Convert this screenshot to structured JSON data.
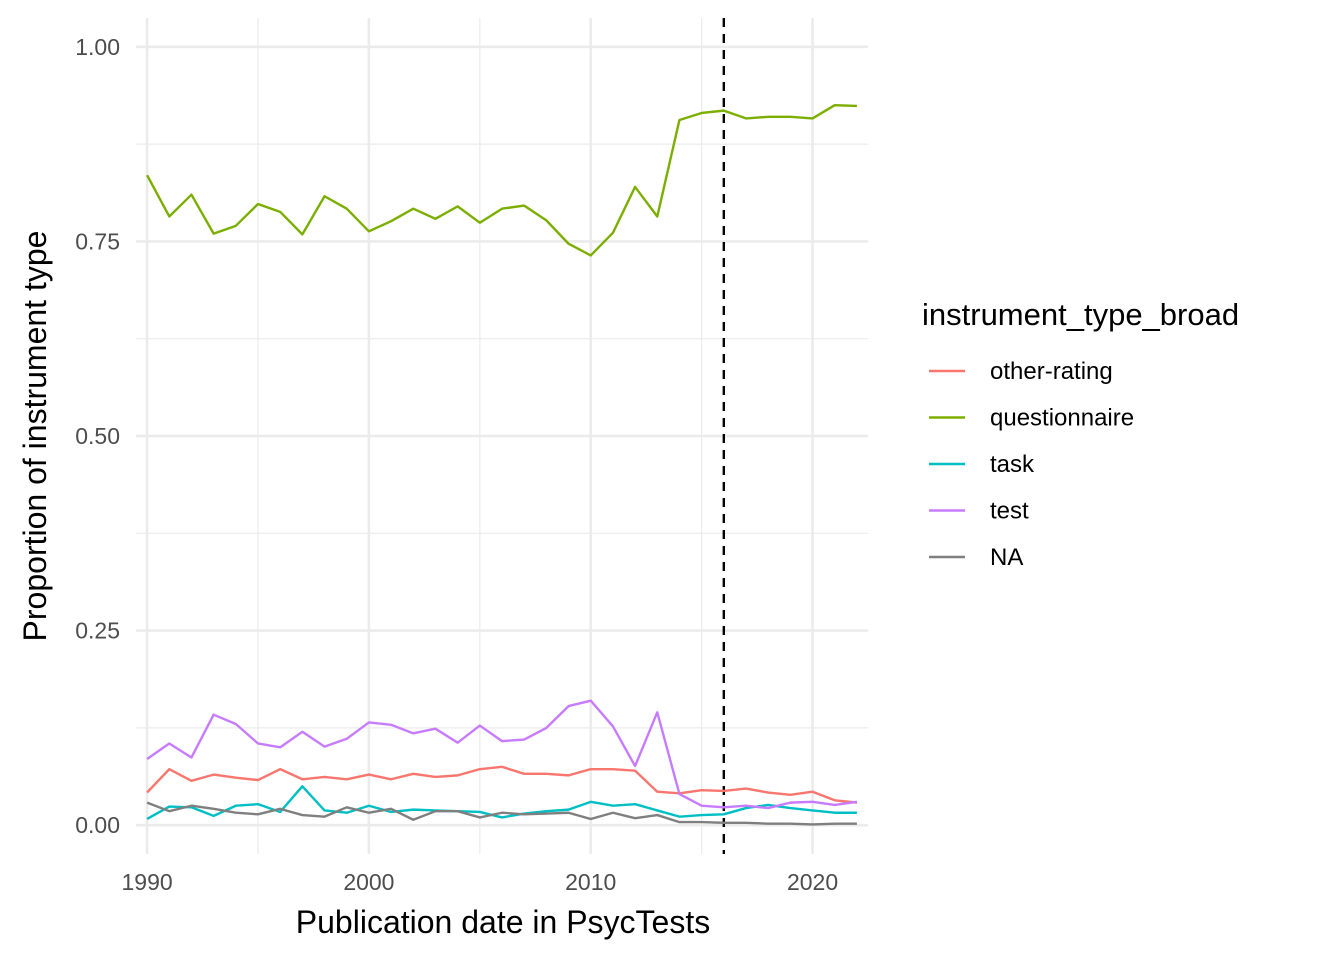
{
  "chart_data": {
    "type": "line",
    "xlabel": "Publication date in PsycTests",
    "ylabel": "Proportion of instrument type",
    "xlim": [
      1989.5,
      2022.5
    ],
    "ylim": [
      -0.037,
      1.037
    ],
    "x_ticks": [
      1990,
      2000,
      2010,
      2020
    ],
    "x_tick_labels": [
      "1990",
      "2000",
      "2010",
      "2020"
    ],
    "y_ticks": [
      0,
      0.25,
      0.5,
      0.75,
      1.0
    ],
    "y_tick_labels": [
      "0.00",
      "0.25",
      "0.50",
      "0.75",
      "1.00"
    ],
    "vline": {
      "x": 2016,
      "style": "dashed"
    },
    "grid": true,
    "legend": {
      "title": "instrument_type_broad",
      "position": "right"
    },
    "x": [
      1990,
      1991,
      1992,
      1993,
      1994,
      1995,
      1996,
      1997,
      1998,
      1999,
      2000,
      2001,
      2002,
      2003,
      2004,
      2005,
      2006,
      2007,
      2008,
      2009,
      2010,
      2011,
      2012,
      2013,
      2014,
      2015,
      2016,
      2017,
      2018,
      2019,
      2020,
      2021,
      2022
    ],
    "series": [
      {
        "name": "other-rating",
        "color": "#F8766D",
        "values": [
          0.042,
          0.072,
          0.057,
          0.065,
          0.061,
          0.058,
          0.072,
          0.059,
          0.062,
          0.059,
          0.065,
          0.059,
          0.066,
          0.062,
          0.064,
          0.072,
          0.075,
          0.066,
          0.066,
          0.064,
          0.072,
          0.072,
          0.07,
          0.043,
          0.041,
          0.045,
          0.044,
          0.047,
          0.042,
          0.039,
          0.043,
          0.032,
          0.029
        ]
      },
      {
        "name": "questionnaire",
        "color": "#7CAE00",
        "values": [
          0.835,
          0.782,
          0.81,
          0.76,
          0.77,
          0.798,
          0.788,
          0.759,
          0.808,
          0.792,
          0.763,
          0.776,
          0.792,
          0.779,
          0.795,
          0.774,
          0.792,
          0.796,
          0.777,
          0.747,
          0.732,
          0.761,
          0.82,
          0.782,
          0.906,
          0.915,
          0.918,
          0.908,
          0.91,
          0.91,
          0.908,
          0.925,
          0.924
        ]
      },
      {
        "name": "task",
        "color": "#00BFC4",
        "values": [
          0.008,
          0.024,
          0.023,
          0.012,
          0.025,
          0.027,
          0.017,
          0.05,
          0.019,
          0.016,
          0.025,
          0.017,
          0.02,
          0.019,
          0.018,
          0.017,
          0.01,
          0.015,
          0.018,
          0.02,
          0.03,
          0.025,
          0.027,
          0.019,
          0.011,
          0.013,
          0.014,
          0.022,
          0.026,
          0.022,
          0.019,
          0.016,
          0.016
        ]
      },
      {
        "name": "test",
        "color": "#C77CFF",
        "values": [
          0.085,
          0.105,
          0.087,
          0.142,
          0.13,
          0.105,
          0.1,
          0.12,
          0.101,
          0.111,
          0.132,
          0.129,
          0.118,
          0.124,
          0.106,
          0.128,
          0.108,
          0.11,
          0.125,
          0.153,
          0.16,
          0.127,
          0.076,
          0.145,
          0.04,
          0.025,
          0.023,
          0.025,
          0.022,
          0.029,
          0.03,
          0.026,
          0.03
        ]
      },
      {
        "name": "NA",
        "color": "#7F7F7F",
        "values": [
          0.029,
          0.018,
          0.025,
          0.021,
          0.016,
          0.014,
          0.021,
          0.013,
          0.011,
          0.023,
          0.016,
          0.021,
          0.007,
          0.018,
          0.018,
          0.01,
          0.016,
          0.014,
          0.015,
          0.016,
          0.008,
          0.016,
          0.009,
          0.013,
          0.004,
          0.004,
          0.003,
          0.003,
          0.002,
          0.002,
          0.001,
          0.002,
          0.002
        ]
      }
    ]
  }
}
